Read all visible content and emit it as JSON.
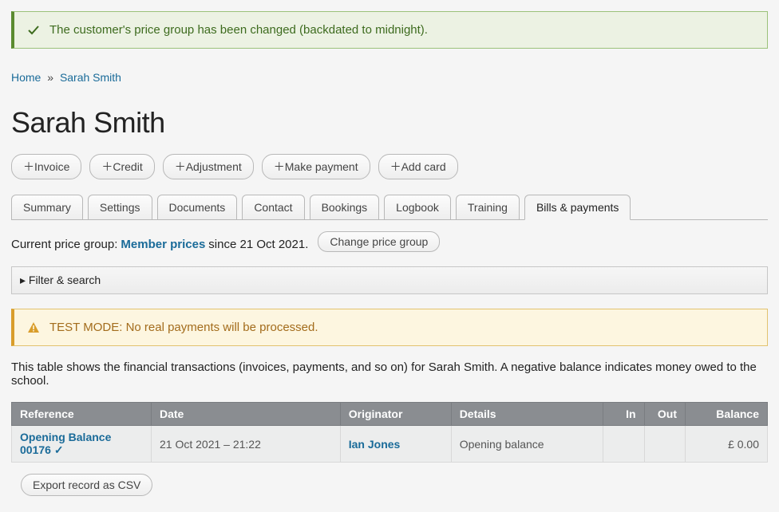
{
  "alerts": {
    "success": "The customer's price group has been changed (backdated to midnight).",
    "warn": "TEST MODE: No real payments will be processed."
  },
  "breadcrumb": {
    "home": "Home",
    "sep": "»",
    "current": "Sarah Smith"
  },
  "page_title": "Sarah Smith",
  "action_buttons": [
    "＋Invoice",
    "＋Credit",
    "＋Adjustment",
    "＋Make payment",
    "＋Add card"
  ],
  "tabs": [
    "Summary",
    "Settings",
    "Documents",
    "Contact",
    "Bookings",
    "Logbook",
    "Training",
    "Bills & payments"
  ],
  "active_tab_index": 7,
  "price_group": {
    "label": "Current price group:",
    "link": "Member prices",
    "since": "since 21 Oct 2021.",
    "button": "Change price group"
  },
  "filter_label": "▸ Filter & search",
  "table_intro": "This table shows the financial transactions (invoices, payments, and so on) for Sarah Smith. A negative balance indicates money owed to the school.",
  "table": {
    "headers": [
      "Reference",
      "Date",
      "Originator",
      "Details",
      "In",
      "Out",
      "Balance"
    ],
    "widths": [
      "170px",
      "230px",
      "135px",
      "185px",
      "50px",
      "50px",
      "100px"
    ],
    "rows": [
      {
        "reference": "Opening Balance 00176 ✓",
        "date": "21 Oct 2021 – 21:22",
        "originator": "Ian Jones",
        "details": "Opening balance",
        "in": "",
        "out": "",
        "balance": "£ 0.00"
      }
    ]
  },
  "export_label": "Export record as CSV"
}
